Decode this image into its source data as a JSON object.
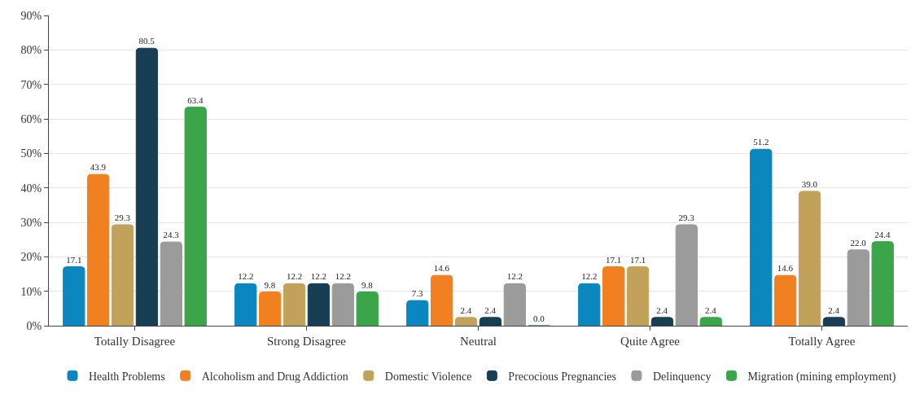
{
  "chart_data": {
    "type": "bar",
    "categories": [
      "Totally Disagree",
      "Strong Disagree",
      "Neutral",
      "Quite Agree",
      "Totally Agree"
    ],
    "series": [
      {
        "name": "Health Problems",
        "color": "#0b87bf",
        "values": [
          17.1,
          12.2,
          7.3,
          12.2,
          51.2
        ],
        "value_labels": [
          "17.1",
          "12.2",
          "7.3",
          "12.2",
          "51.2"
        ]
      },
      {
        "name": "Alcoholism and Drug Addiction",
        "color": "#f08020",
        "values": [
          43.9,
          9.8,
          14.6,
          17.1,
          14.6
        ],
        "value_labels": [
          "43.9",
          "9.8",
          "14.6",
          "17.1",
          "14.6"
        ]
      },
      {
        "name": "Domestic Violence",
        "color": "#c2a25a",
        "values": [
          29.3,
          12.2,
          2.4,
          17.1,
          39.0
        ],
        "value_labels": [
          "29.3",
          "12.2",
          "2.4",
          "17.1",
          "39.0"
        ]
      },
      {
        "name": "Precocious Pregnancies",
        "color": "#173e52",
        "values": [
          80.5,
          12.2,
          2.4,
          2.4,
          2.4
        ],
        "value_labels": [
          "80.5",
          "12.2",
          "2.4",
          "2.4",
          "2.4"
        ]
      },
      {
        "name": "Delinquency",
        "color": "#9b9b9b",
        "values": [
          24.3,
          12.2,
          12.2,
          29.3,
          22.0
        ],
        "value_labels": [
          "24.3",
          "12.2",
          "12.2",
          "29.3",
          "22.0"
        ]
      },
      {
        "name": "Migration (mining employment)",
        "color": "#3ba54a",
        "values": [
          63.4,
          9.8,
          0.0,
          2.4,
          24.4
        ],
        "value_labels": [
          "63.4",
          "9.8",
          "0.0",
          "2.4",
          "24.4"
        ]
      }
    ],
    "ylim": [
      0,
      90
    ],
    "yticks": [
      {
        "value": 0,
        "label": "0%"
      },
      {
        "value": 10,
        "label": "10%"
      },
      {
        "value": 20,
        "label": "20%"
      },
      {
        "value": 30,
        "label": "30%"
      },
      {
        "value": 40,
        "label": "40%"
      },
      {
        "value": 50,
        "label": "50%"
      },
      {
        "value": 60,
        "label": "60%"
      },
      {
        "value": 70,
        "label": "70%"
      },
      {
        "value": 80,
        "label": "80%"
      },
      {
        "value": 90,
        "label": "90%"
      }
    ],
    "grid": "y",
    "legend": "bottom"
  }
}
